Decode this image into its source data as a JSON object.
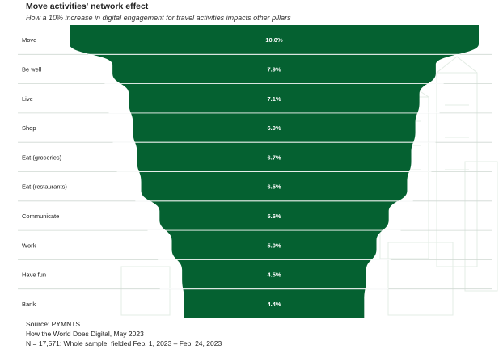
{
  "header": {
    "title": "Move activities' network effect",
    "subtitle": "How a 10% increase in digital engagement for travel activities impacts other pillars"
  },
  "colors": {
    "funnel": "#056131",
    "separator": "#ffffff",
    "label": "#1a1a1a",
    "value_label": "#ffffff"
  },
  "chart_data": {
    "type": "bar",
    "categories": [
      "Move",
      "Be well",
      "Live",
      "Shop",
      "Eat (groceries)",
      "Eat (restaurants)",
      "Communicate",
      "Work",
      "Have fun",
      "Bank"
    ],
    "values": [
      10.0,
      7.9,
      7.1,
      6.9,
      6.7,
      6.5,
      5.6,
      5.0,
      4.5,
      4.4
    ],
    "value_labels": [
      "10.0%",
      "7.9%",
      "7.1%",
      "6.9%",
      "6.7%",
      "6.5%",
      "5.6%",
      "5.0%",
      "4.5%",
      "4.4%"
    ],
    "unit": "%",
    "orientation": "funnel (centered horizontal bars)"
  },
  "footer": {
    "source": "Source: PYMNTS",
    "report": "How the World Does Digital, May 2023",
    "sample": "N = 17,571: Whole sample, fielded Feb. 1, 2023 – Feb. 24, 2023"
  }
}
